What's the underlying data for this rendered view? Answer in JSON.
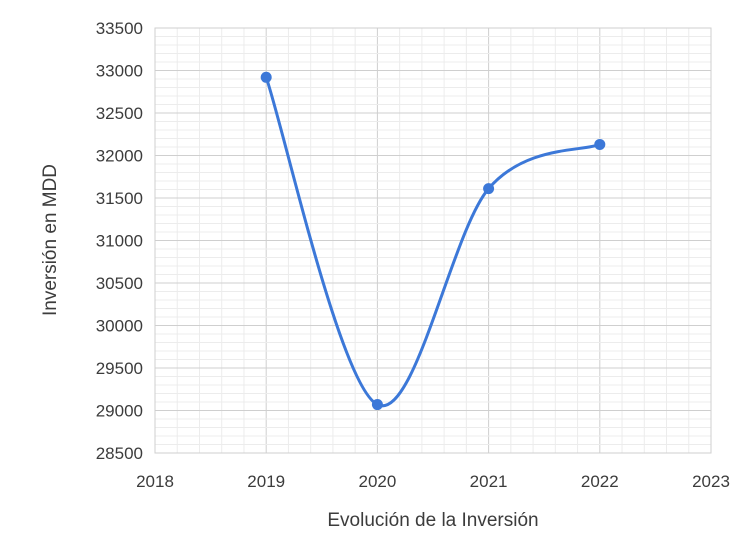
{
  "chart_data": {
    "type": "line",
    "title": "",
    "xlabel": "Evolución  de la Inversión",
    "ylabel": "Inversión  en MDD",
    "xlim": [
      2018,
      2023
    ],
    "ylim": [
      28500,
      33500
    ],
    "x_ticks": [
      "2018",
      "2019",
      "2020",
      "2021",
      "2022",
      "2023"
    ],
    "y_ticks": [
      "28500",
      "29000",
      "29500",
      "30000",
      "30500",
      "31000",
      "31500",
      "32000",
      "32500",
      "33000",
      "33500"
    ],
    "grid": true,
    "smooth": true,
    "series": [
      {
        "color": "#3c78d8",
        "x": [
          2019,
          2020,
          2021,
          2022
        ],
        "y": [
          32920,
          29070,
          31610,
          32130
        ]
      }
    ]
  }
}
